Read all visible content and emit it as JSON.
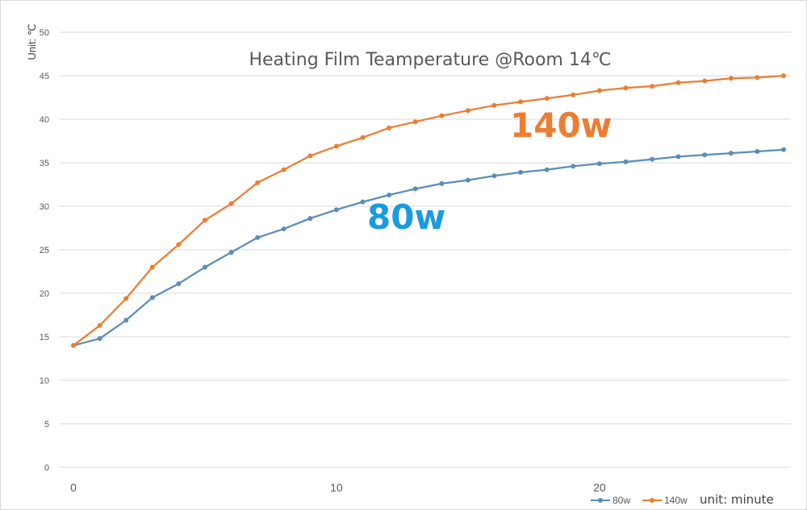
{
  "chart_data": {
    "type": "line",
    "title": "Heating Film Teamperature @Room 14℃",
    "ylabel": "Unit: ℃",
    "xlabel": "unit: minute",
    "xlim": [
      0,
      27
    ],
    "ylim": [
      0,
      50
    ],
    "yticks": [
      0,
      5,
      10,
      15,
      20,
      25,
      30,
      35,
      40,
      45,
      50
    ],
    "xticks": [
      0,
      10,
      20
    ],
    "grid": true,
    "legend_position": "bottom-right",
    "x": [
      0,
      1,
      2,
      3,
      4,
      5,
      6,
      7,
      8,
      9,
      10,
      11,
      12,
      13,
      14,
      15,
      16,
      17,
      18,
      19,
      20,
      21,
      22,
      23,
      24,
      25,
      26,
      27
    ],
    "series": [
      {
        "name": "80w",
        "color": "#5b8db8",
        "values": [
          14.0,
          14.8,
          16.9,
          19.5,
          21.1,
          23.0,
          24.7,
          26.4,
          27.4,
          28.6,
          29.6,
          30.5,
          31.3,
          32.0,
          32.6,
          33.0,
          33.5,
          33.9,
          34.2,
          34.6,
          34.9,
          35.1,
          35.4,
          35.7,
          35.9,
          36.1,
          36.3,
          36.5
        ]
      },
      {
        "name": "140w",
        "color": "#ed7d31",
        "values": [
          14.0,
          16.3,
          19.4,
          23.0,
          25.6,
          28.4,
          30.3,
          32.7,
          34.2,
          35.8,
          36.9,
          37.9,
          39.0,
          39.7,
          40.4,
          41.0,
          41.6,
          42.0,
          42.4,
          42.8,
          43.3,
          43.6,
          43.8,
          44.2,
          44.4,
          44.7,
          44.8,
          45.0
        ]
      }
    ],
    "annotations": [
      {
        "text": "140w",
        "color": "#ed7d31"
      },
      {
        "text": "80w",
        "color": "#1a9be0"
      }
    ]
  }
}
